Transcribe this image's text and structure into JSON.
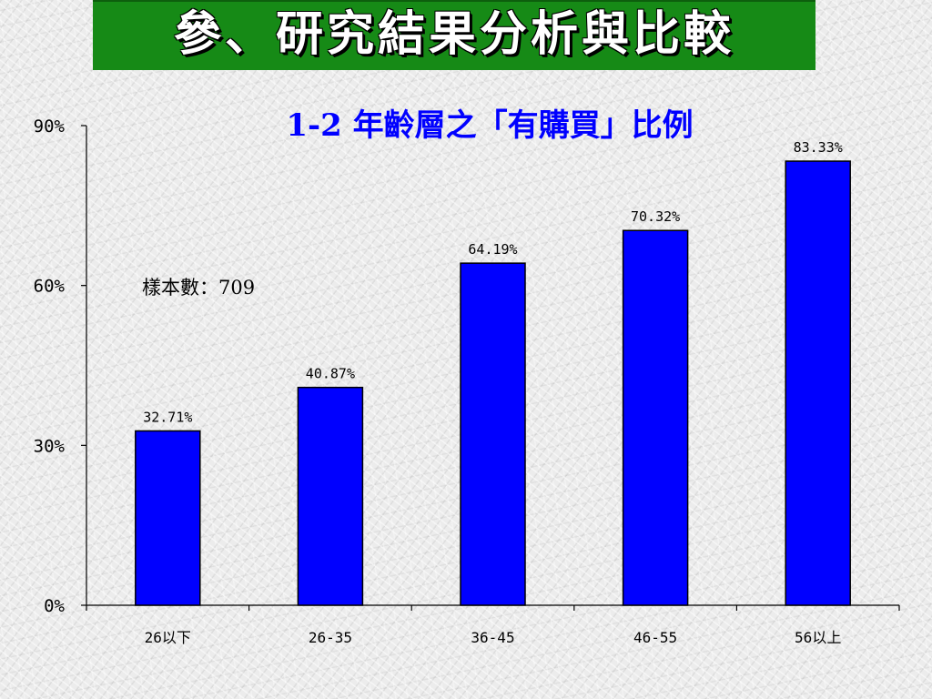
{
  "header": {
    "title": "參、研究結果分析與比較"
  },
  "chart_data": {
    "type": "bar",
    "title": "1-2 年齡層之「有購買」比例",
    "annotation": "樣本數：709",
    "categories": [
      "26以下",
      "26-35",
      "36-45",
      "46-55",
      "56以上"
    ],
    "values": [
      32.71,
      40.87,
      64.19,
      70.32,
      83.33
    ],
    "data_labels": [
      "32.71%",
      "40.87%",
      "64.19%",
      "70.32%",
      "83.33%"
    ],
    "y_ticks": [
      0,
      30,
      60,
      90
    ],
    "y_tick_labels": [
      "0%",
      "30%",
      "60%",
      "90%"
    ],
    "ylim": [
      0,
      90
    ],
    "xlabel": "",
    "ylabel": "",
    "grid": false,
    "legend": "none",
    "bar_color": "#0000ff",
    "title_color": "#0000ff",
    "header_color": "#168a16"
  }
}
